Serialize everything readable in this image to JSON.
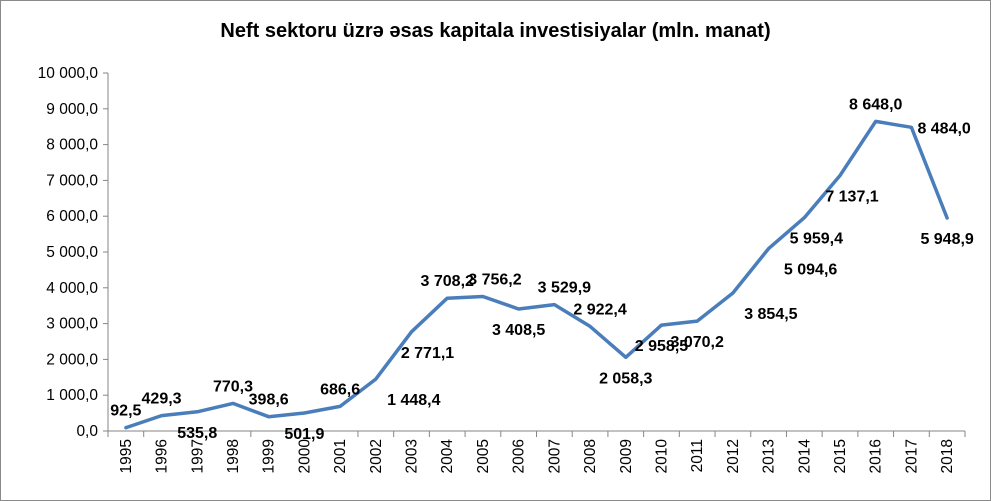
{
  "chart_data": {
    "type": "line",
    "title": "Neft sektoru üzrə əsas kapitala investisiyalar (mln. manat)",
    "xlabel": "",
    "ylabel": "",
    "ylim": [
      0,
      10000
    ],
    "y_ticks": [
      "0,0",
      "1 000,0",
      "2 000,0",
      "3 000,0",
      "4 000,0",
      "5 000,0",
      "6 000,0",
      "7 000,0",
      "8 000,0",
      "9 000,0",
      "10 000,0"
    ],
    "categories": [
      "1995",
      "1996",
      "1997",
      "1998",
      "1999",
      "2000",
      "2001",
      "2002",
      "2003",
      "2004",
      "2005",
      "2006",
      "2007",
      "2008",
      "2009",
      "2010",
      "2011",
      "2012",
      "2013",
      "2014",
      "2015",
      "2016",
      "2017",
      "2018"
    ],
    "series": [
      {
        "color": "#4a7ebb",
        "values": [
          92.5,
          429.3,
          535.8,
          770.3,
          398.6,
          501.9,
          686.6,
          1448.4,
          2771.1,
          3708.2,
          3756.2,
          3408.5,
          3529.9,
          2922.4,
          2058.3,
          2958.5,
          3070.2,
          3854.5,
          5094.6,
          5959.4,
          7137.1,
          8648.0,
          8484.0,
          5948.9
        ],
        "labels": [
          "92,5",
          "429,3",
          "535,8",
          "770,3",
          "398,6",
          "501,9",
          "686,6",
          "1 448,4",
          "2 771,1",
          "3 708,2",
          "3 756,2",
          "3 408,5",
          "3 529,9",
          "2 922,4",
          "2 058,3",
          "2 958,5",
          "3 070,2",
          "3 854,5",
          "5 094,6",
          "5 959,4",
          "7 137,1",
          "8 648,0",
          "8 484,0",
          "5 948,9"
        ]
      }
    ],
    "grid": false,
    "legend": "none"
  }
}
